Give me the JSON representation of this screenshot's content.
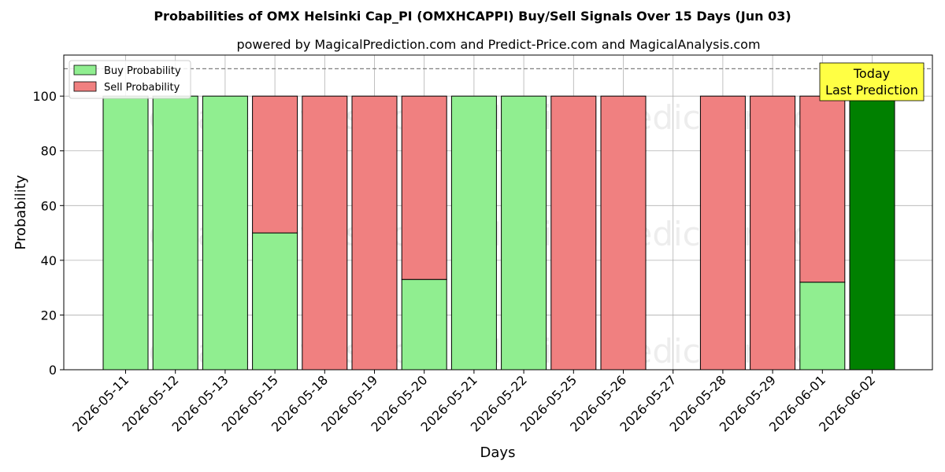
{
  "chart_data": {
    "type": "bar",
    "stacked": true,
    "title": "Probabilities of OMX Helsinki Cap_PI (OMXHCAPPI) Buy/Sell Signals Over 15 Days (Jun 03)",
    "subtitle": "powered by MagicalPrediction.com and Predict-Price.com and MagicalAnalysis.com",
    "xlabel": "Days",
    "ylabel": "Probability",
    "ylim": [
      0,
      115
    ],
    "yticks": [
      0,
      20,
      40,
      60,
      80,
      100
    ],
    "reference_line": 110,
    "grid": true,
    "legend_position": "top-left",
    "categories": [
      "2026-05-11",
      "2026-05-12",
      "2026-05-13",
      "2026-05-15",
      "2026-05-18",
      "2026-05-19",
      "2026-05-20",
      "2026-05-21",
      "2026-05-22",
      "2026-05-25",
      "2026-05-26",
      "2026-05-27",
      "2026-05-28",
      "2026-05-29",
      "2026-06-01",
      "2026-06-02"
    ],
    "series": [
      {
        "name": "Buy Probability",
        "color": "#90ee90",
        "values": [
          100,
          100,
          100,
          50,
          0,
          0,
          33,
          100,
          100,
          0,
          0,
          0,
          0,
          0,
          32,
          100
        ]
      },
      {
        "name": "Sell Probability",
        "color": "#f08080",
        "values": [
          0,
          0,
          0,
          50,
          100,
          100,
          67,
          0,
          0,
          100,
          100,
          0,
          100,
          100,
          68,
          0
        ]
      }
    ],
    "highlight": {
      "category": "2026-06-02",
      "color": "#008000"
    },
    "annotation": {
      "lines": [
        "Today",
        "Last Prediction"
      ],
      "background": "#ffff44"
    },
    "watermarks": [
      "MagicalAnalysis.com",
      "MagicalPrediction.com"
    ]
  }
}
